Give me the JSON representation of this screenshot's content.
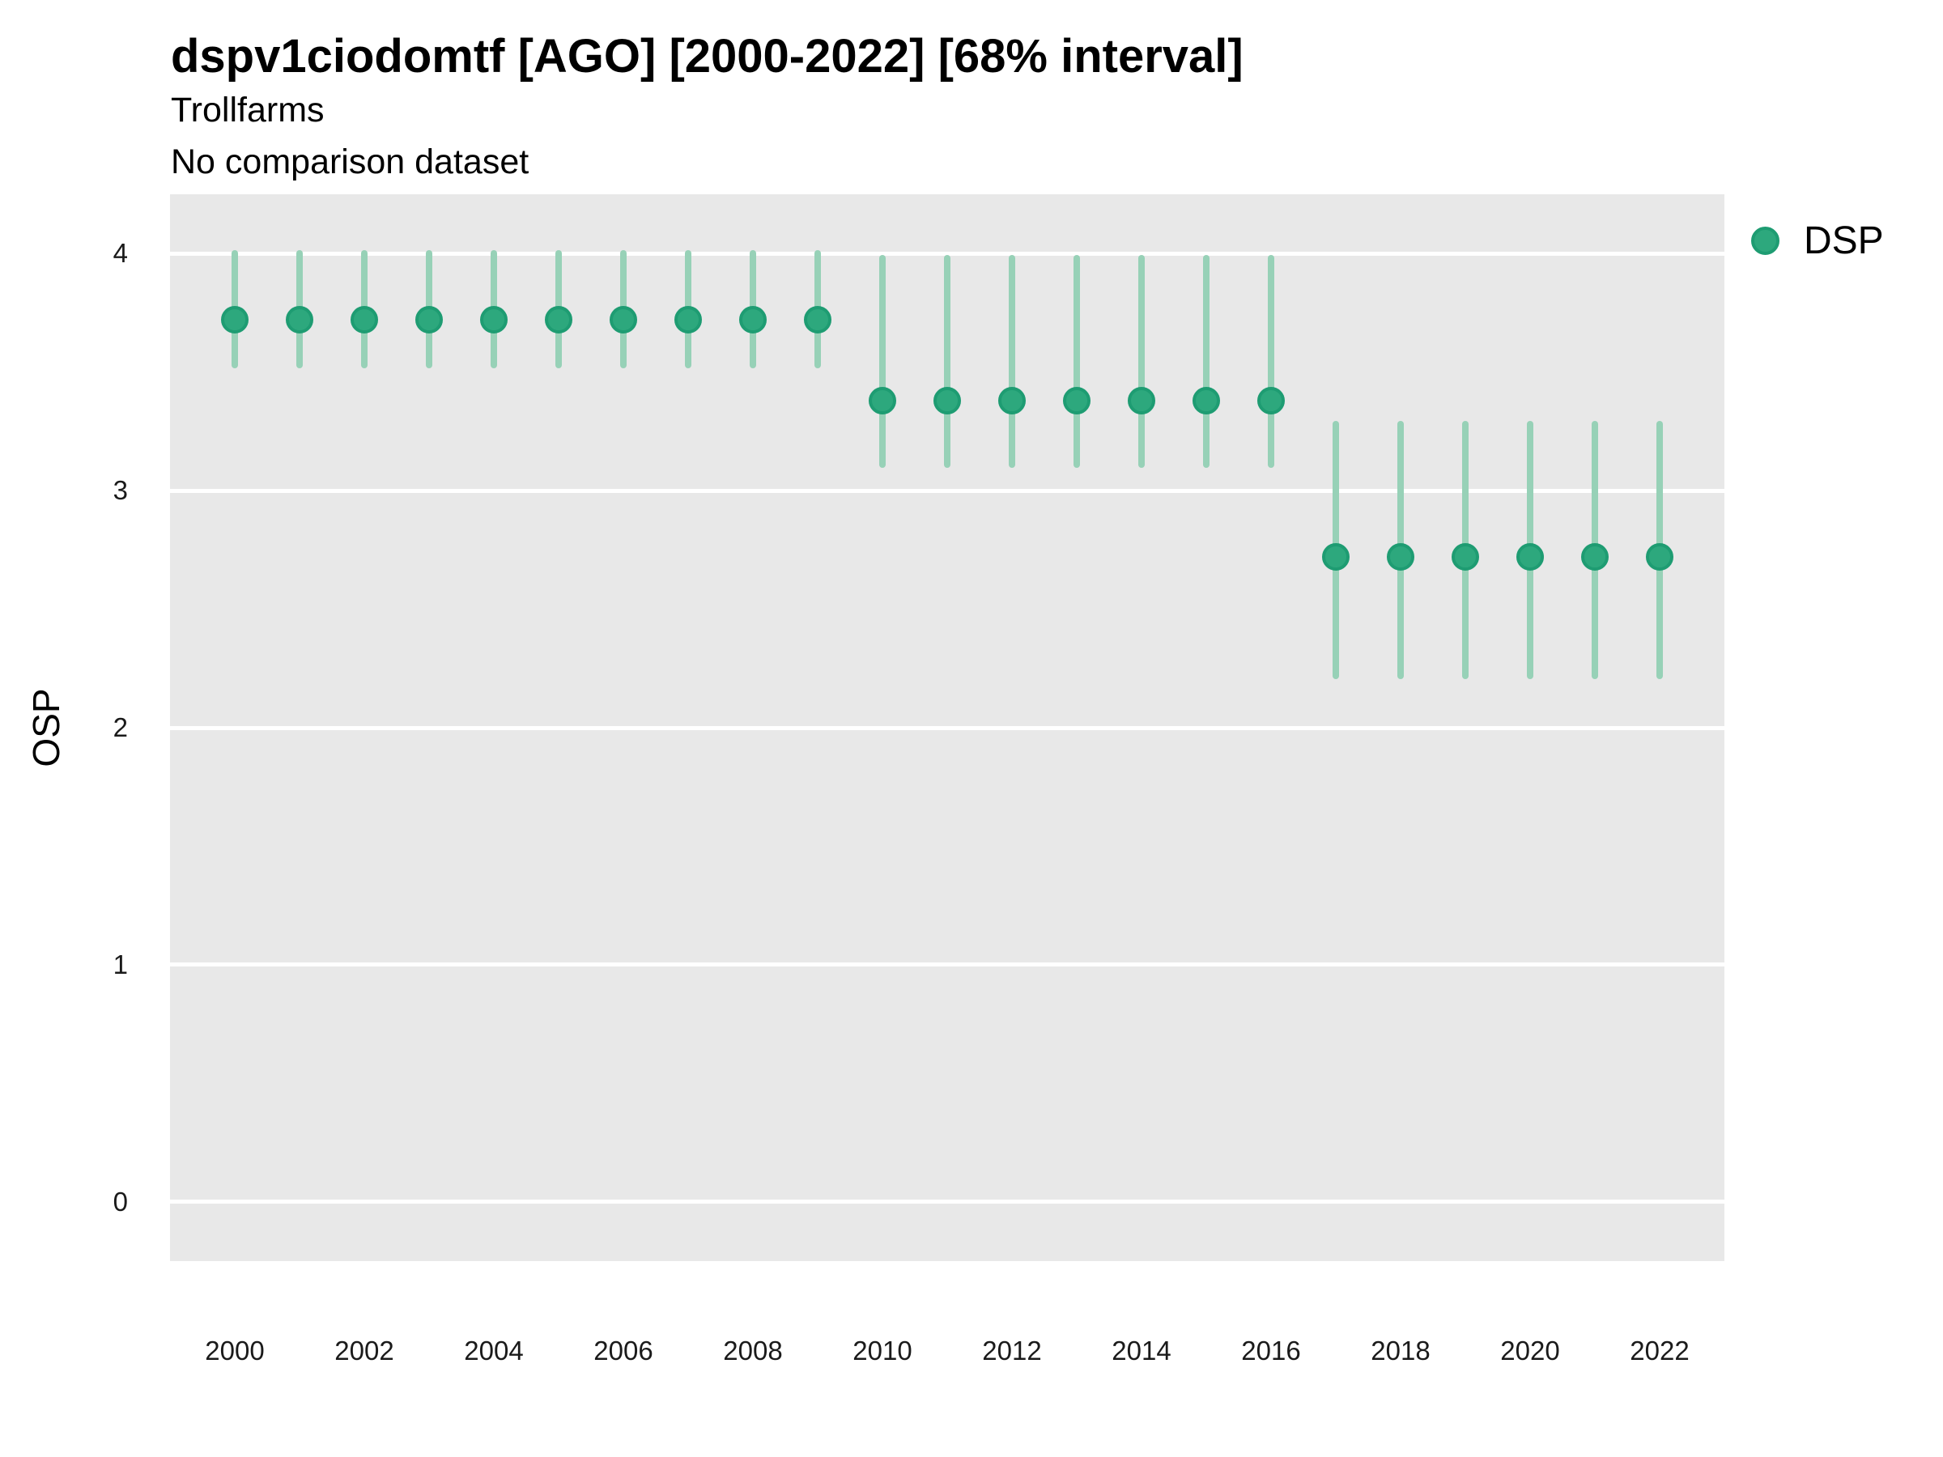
{
  "header": {
    "title": "dspv1ciodomtf [AGO] [2000-2022] [68% interval]",
    "subtitle": "Trollfarms",
    "comparison_note": "No comparison dataset"
  },
  "axes": {
    "y_label": "OSP",
    "y_ticks": [
      "0",
      "1",
      "2",
      "3",
      "4"
    ],
    "x_ticks": [
      "2000",
      "2002",
      "2004",
      "2006",
      "2008",
      "2010",
      "2012",
      "2014",
      "2016",
      "2018",
      "2020",
      "2022"
    ]
  },
  "legend": {
    "items": [
      {
        "label": "DSP",
        "marker": "circle-icon",
        "color": "#2da87d"
      }
    ]
  },
  "colors": {
    "point_fill": "#2da87d",
    "point_stroke": "#1e9c72",
    "interval_bar": "#97d1b7",
    "panel_background": "#e8e8e8",
    "gridline": "#ffffff",
    "text": "#000000"
  },
  "chart_data": {
    "type": "scatter",
    "title": "dspv1ciodomtf [AGO] [2000-2022] [68% interval]",
    "subtitle": "Trollfarms",
    "note": "No comparison dataset",
    "interval_level": "68%",
    "xlabel": "",
    "ylabel": "OSP",
    "legend_position": "right-top",
    "grid": "horizontal-major-white-on-gray",
    "ylim": [
      -0.25,
      4.25
    ],
    "yticks": [
      0,
      1,
      2,
      3,
      4
    ],
    "xticks": [
      2000,
      2002,
      2004,
      2006,
      2008,
      2010,
      2012,
      2014,
      2016,
      2018,
      2020,
      2022
    ],
    "x": [
      2000,
      2001,
      2002,
      2003,
      2004,
      2005,
      2006,
      2007,
      2008,
      2009,
      2010,
      2011,
      2012,
      2013,
      2014,
      2015,
      2016,
      2017,
      2018,
      2019,
      2020,
      2021,
      2022
    ],
    "series": [
      {
        "name": "DSP",
        "values": [
          3.72,
          3.72,
          3.72,
          3.72,
          3.72,
          3.72,
          3.72,
          3.72,
          3.72,
          3.72,
          3.38,
          3.38,
          3.38,
          3.38,
          3.38,
          3.38,
          3.38,
          2.72,
          2.72,
          2.72,
          2.72,
          2.72,
          2.72
        ],
        "lower": [
          3.53,
          3.53,
          3.53,
          3.53,
          3.53,
          3.53,
          3.53,
          3.53,
          3.53,
          3.53,
          3.11,
          3.11,
          3.11,
          3.11,
          3.11,
          3.11,
          3.11,
          2.22,
          2.22,
          2.22,
          2.22,
          2.22,
          2.22
        ],
        "upper": [
          4.0,
          4.0,
          4.0,
          4.0,
          4.0,
          4.0,
          4.0,
          4.0,
          4.0,
          4.0,
          3.98,
          3.98,
          3.98,
          3.98,
          3.98,
          3.98,
          3.98,
          3.28,
          3.28,
          3.28,
          3.28,
          3.28,
          3.28
        ]
      }
    ]
  }
}
